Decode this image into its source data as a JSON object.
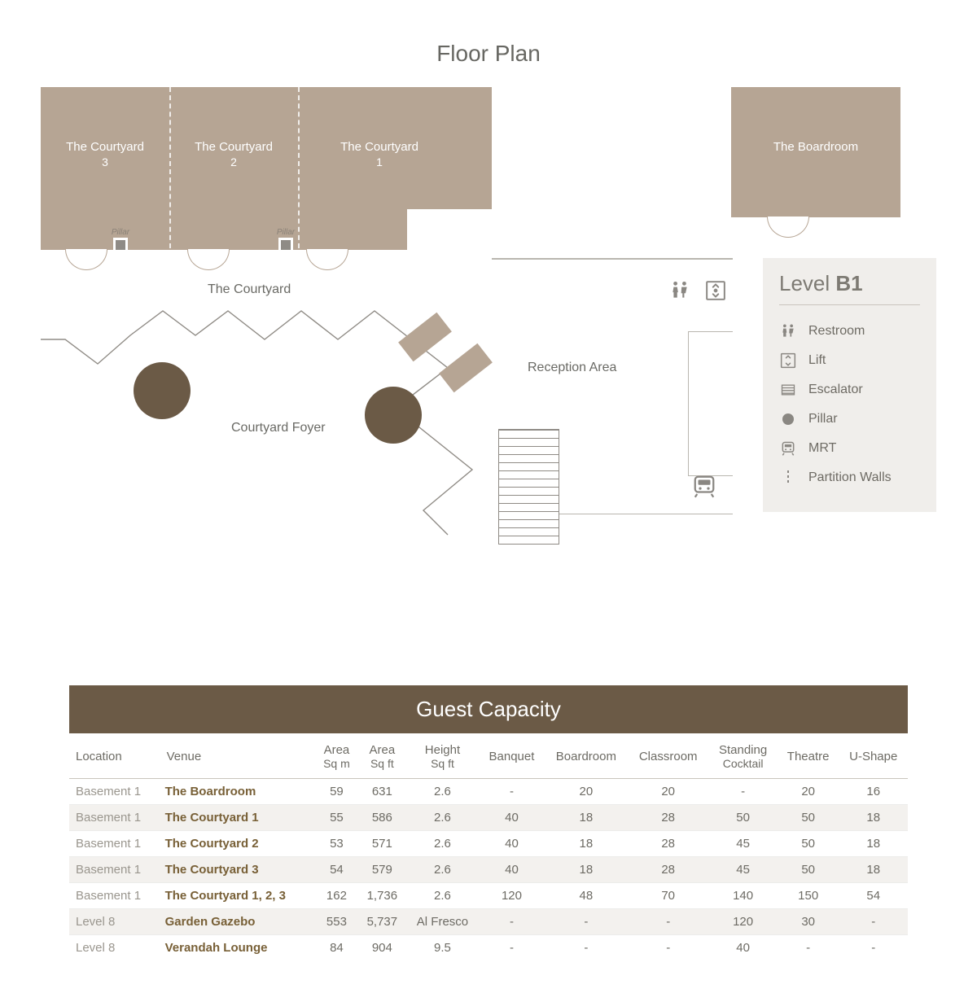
{
  "colors": {
    "room_fill": "#b6a594",
    "pillar_fill": "#8f8b86",
    "accent_dark": "#6b5a46",
    "panel_bg": "#f0eeeb",
    "text_muted": "#6d6b64",
    "line_muted": "#b9b6af"
  },
  "title": "Floor Plan",
  "rooms": {
    "courtyard3": {
      "label": "The Courtyard",
      "sub": "3"
    },
    "courtyard2": {
      "label": "The Courtyard",
      "sub": "2"
    },
    "courtyard1": {
      "label": "The Courtyard",
      "sub": "1"
    },
    "boardroom": {
      "label": "The Boardroom",
      "sub": ""
    }
  },
  "pillars": {
    "label": "Pillar"
  },
  "labels": {
    "courtyard_overall": "The Courtyard",
    "foyer": "Courtyard Foyer",
    "reception": "Reception Area"
  },
  "legend": {
    "level_prefix": "Level",
    "level_value": "B1",
    "items": [
      {
        "key": "restroom",
        "label": "Restroom"
      },
      {
        "key": "lift",
        "label": "Lift"
      },
      {
        "key": "escalator",
        "label": "Escalator"
      },
      {
        "key": "pillar",
        "label": "Pillar"
      },
      {
        "key": "mrt",
        "label": "MRT"
      },
      {
        "key": "partition",
        "label": "Partition Walls"
      }
    ]
  },
  "capacity": {
    "title": "Guest Capacity",
    "columns": [
      {
        "key": "location",
        "label": "Location",
        "sub": "",
        "align": "l"
      },
      {
        "key": "venue",
        "label": "Venue",
        "sub": "",
        "align": "l"
      },
      {
        "key": "area_m",
        "label": "Area",
        "sub": "Sq m",
        "align": "c"
      },
      {
        "key": "area_ft",
        "label": "Area",
        "sub": "Sq ft",
        "align": "c"
      },
      {
        "key": "height",
        "label": "Height",
        "sub": "Sq ft",
        "align": "c"
      },
      {
        "key": "banquet",
        "label": "Banquet",
        "sub": "",
        "align": "c"
      },
      {
        "key": "board",
        "label": "Boardroom",
        "sub": "",
        "align": "c"
      },
      {
        "key": "class",
        "label": "Classroom",
        "sub": "",
        "align": "c"
      },
      {
        "key": "cocktail",
        "label": "Standing",
        "sub": "Cocktail",
        "align": "c"
      },
      {
        "key": "theatre",
        "label": "Theatre",
        "sub": "",
        "align": "c"
      },
      {
        "key": "ushape",
        "label": "U-Shape",
        "sub": "",
        "align": "c"
      }
    ],
    "rows": [
      {
        "shade": false,
        "location": "Basement 1",
        "venue": "The Boardroom",
        "area_m": "59",
        "area_ft": "631",
        "height": "2.6",
        "banquet": "-",
        "board": "20",
        "class": "20",
        "cocktail": "-",
        "theatre": "20",
        "ushape": "16"
      },
      {
        "shade": true,
        "location": "Basement 1",
        "venue": "The Courtyard 1",
        "area_m": "55",
        "area_ft": "586",
        "height": "2.6",
        "banquet": "40",
        "board": "18",
        "class": "28",
        "cocktail": "50",
        "theatre": "50",
        "ushape": "18"
      },
      {
        "shade": false,
        "location": "Basement 1",
        "venue": "The Courtyard 2",
        "area_m": "53",
        "area_ft": "571",
        "height": "2.6",
        "banquet": "40",
        "board": "18",
        "class": "28",
        "cocktail": "45",
        "theatre": "50",
        "ushape": "18"
      },
      {
        "shade": true,
        "location": "Basement 1",
        "venue": "The Courtyard 3",
        "area_m": "54",
        "area_ft": "579",
        "height": "2.6",
        "banquet": "40",
        "board": "18",
        "class": "28",
        "cocktail": "45",
        "theatre": "50",
        "ushape": "18"
      },
      {
        "shade": false,
        "location": "Basement 1",
        "venue": "The Courtyard 1, 2, 3",
        "area_m": "162",
        "area_ft": "1,736",
        "height": "2.6",
        "banquet": "120",
        "board": "48",
        "class": "70",
        "cocktail": "140",
        "theatre": "150",
        "ushape": "54"
      },
      {
        "shade": true,
        "location": "Level 8",
        "venue": "Garden Gazebo",
        "area_m": "553",
        "area_ft": "5,737",
        "height": "Al Fresco",
        "banquet": "-",
        "board": "-",
        "class": "-",
        "cocktail": "120",
        "theatre": "30",
        "ushape": "-"
      },
      {
        "shade": false,
        "location": "Level 8",
        "venue": "Verandah Lounge",
        "area_m": "84",
        "area_ft": "904",
        "height": "9.5",
        "banquet": "-",
        "board": "-",
        "class": "-",
        "cocktail": "40",
        "theatre": "-",
        "ushape": "-"
      }
    ]
  }
}
